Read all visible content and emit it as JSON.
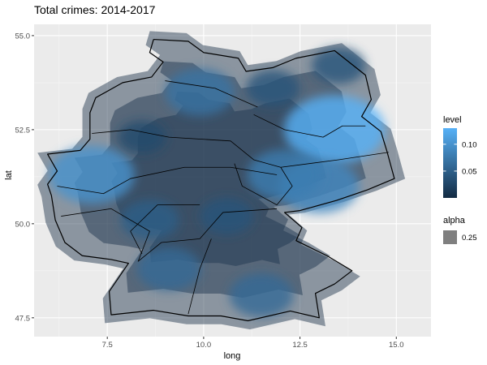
{
  "chart_data": {
    "type": "density-map",
    "title": "Total crimes: 2014-2017",
    "xlabel": "long",
    "ylabel": "lat",
    "xlim": [
      5.6,
      15.9
    ],
    "ylim": [
      47.0,
      55.3
    ],
    "x_ticks": [
      7.5,
      10.0,
      12.5,
      15.0
    ],
    "x_tick_labels": [
      "7.5",
      "10.0",
      "12.5",
      "15.0"
    ],
    "y_ticks": [
      47.5,
      50.0,
      52.5,
      55.0
    ],
    "y_tick_labels": [
      "47.5",
      "50.0",
      "52.5",
      "55.0"
    ],
    "grid": true,
    "legend_placement": "right",
    "legends": {
      "level": {
        "title": "level",
        "ticks": [
          0.05,
          0.1
        ],
        "tick_labels": [
          "0.05",
          "0.10"
        ],
        "range": [
          0.0,
          0.13
        ],
        "color_low": "#132b43",
        "color_high": "#56b1f7"
      },
      "alpha": {
        "title": "alpha",
        "label": "0.25",
        "swatch_color": "#7f7f7f"
      }
    },
    "hotspots": [
      {
        "long": 13.4,
        "lat": 52.5,
        "level": 0.13
      },
      {
        "long": 7.1,
        "lat": 51.3,
        "level": 0.1
      },
      {
        "long": 13.0,
        "lat": 51.0,
        "level": 0.09
      },
      {
        "long": 12.1,
        "lat": 51.3,
        "level": 0.08
      },
      {
        "long": 9.9,
        "lat": 53.5,
        "level": 0.07
      },
      {
        "long": 11.5,
        "lat": 48.1,
        "level": 0.06
      },
      {
        "long": 9.1,
        "lat": 48.8,
        "level": 0.06
      },
      {
        "long": 8.6,
        "lat": 50.1,
        "level": 0.05
      },
      {
        "long": 13.5,
        "lat": 54.2,
        "level": 0.04
      },
      {
        "long": 11.8,
        "lat": 53.6,
        "level": 0.04
      },
      {
        "long": 10.6,
        "lat": 50.2,
        "level": 0.04
      },
      {
        "long": 8.4,
        "lat": 52.3,
        "level": 0.03
      }
    ],
    "border_outline": [
      [
        8.7,
        54.9
      ],
      [
        9.6,
        54.85
      ],
      [
        10.0,
        54.55
      ],
      [
        10.9,
        54.4
      ],
      [
        11.1,
        54.05
      ],
      [
        11.8,
        54.15
      ],
      [
        12.4,
        54.4
      ],
      [
        13.4,
        54.6
      ],
      [
        14.2,
        53.95
      ],
      [
        14.35,
        53.3
      ],
      [
        14.1,
        52.85
      ],
      [
        14.6,
        52.45
      ],
      [
        14.75,
        51.95
      ],
      [
        14.95,
        51.2
      ],
      [
        14.25,
        50.9
      ],
      [
        13.45,
        50.62
      ],
      [
        12.5,
        50.35
      ],
      [
        12.1,
        50.3
      ],
      [
        12.55,
        49.9
      ],
      [
        12.4,
        49.55
      ],
      [
        13.2,
        49.15
      ],
      [
        13.85,
        48.75
      ],
      [
        13.4,
        48.4
      ],
      [
        12.9,
        48.15
      ],
      [
        13.0,
        47.5
      ],
      [
        12.25,
        47.68
      ],
      [
        11.15,
        47.42
      ],
      [
        10.45,
        47.55
      ],
      [
        9.6,
        47.55
      ],
      [
        8.7,
        47.7
      ],
      [
        7.6,
        47.58
      ],
      [
        7.55,
        48.2
      ],
      [
        8.05,
        48.95
      ],
      [
        7.6,
        49.05
      ],
      [
        6.85,
        49.15
      ],
      [
        6.4,
        49.5
      ],
      [
        6.15,
        50.1
      ],
      [
        6.05,
        50.75
      ],
      [
        5.95,
        51.05
      ],
      [
        6.2,
        51.4
      ],
      [
        5.95,
        51.85
      ],
      [
        6.8,
        51.95
      ],
      [
        7.05,
        52.25
      ],
      [
        7.05,
        52.95
      ],
      [
        7.2,
        53.35
      ],
      [
        7.9,
        53.75
      ],
      [
        8.65,
        53.9
      ],
      [
        8.95,
        54.3
      ],
      [
        8.6,
        54.55
      ],
      [
        8.7,
        54.9
      ]
    ],
    "state_lines": [
      [
        [
          9.0,
          53.8
        ],
        [
          10.3,
          53.6
        ],
        [
          11.4,
          53.1
        ]
      ],
      [
        [
          7.1,
          52.4
        ],
        [
          8.1,
          52.5
        ],
        [
          9.1,
          52.3
        ],
        [
          10.7,
          52.2
        ],
        [
          11.3,
          51.7
        ],
        [
          12.0,
          51.5
        ],
        [
          13.5,
          51.7
        ],
        [
          14.8,
          51.9
        ]
      ],
      [
        [
          6.2,
          51.0
        ],
        [
          7.4,
          50.8
        ],
        [
          8.1,
          51.2
        ],
        [
          9.5,
          51.5
        ],
        [
          10.7,
          51.5
        ],
        [
          11.9,
          51.3
        ]
      ],
      [
        [
          6.3,
          50.2
        ],
        [
          7.6,
          50.4
        ],
        [
          8.6,
          49.8
        ],
        [
          8.3,
          49.0
        ],
        [
          8.9,
          49.5
        ],
        [
          9.9,
          49.6
        ],
        [
          10.5,
          50.3
        ],
        [
          11.9,
          50.4
        ]
      ],
      [
        [
          9.6,
          47.6
        ],
        [
          9.9,
          48.8
        ],
        [
          10.2,
          49.6
        ]
      ],
      [
        [
          11.3,
          52.9
        ],
        [
          12.1,
          52.5
        ],
        [
          13.1,
          52.3
        ],
        [
          13.6,
          52.6
        ],
        [
          14.2,
          52.6
        ]
      ],
      [
        [
          10.8,
          51.6
        ],
        [
          11.0,
          51.0
        ],
        [
          11.9,
          50.5
        ],
        [
          12.3,
          51.0
        ],
        [
          12.0,
          51.5
        ]
      ],
      [
        [
          8.4,
          49.2
        ],
        [
          8.1,
          49.8
        ],
        [
          8.8,
          50.5
        ],
        [
          9.9,
          50.5
        ]
      ]
    ]
  }
}
